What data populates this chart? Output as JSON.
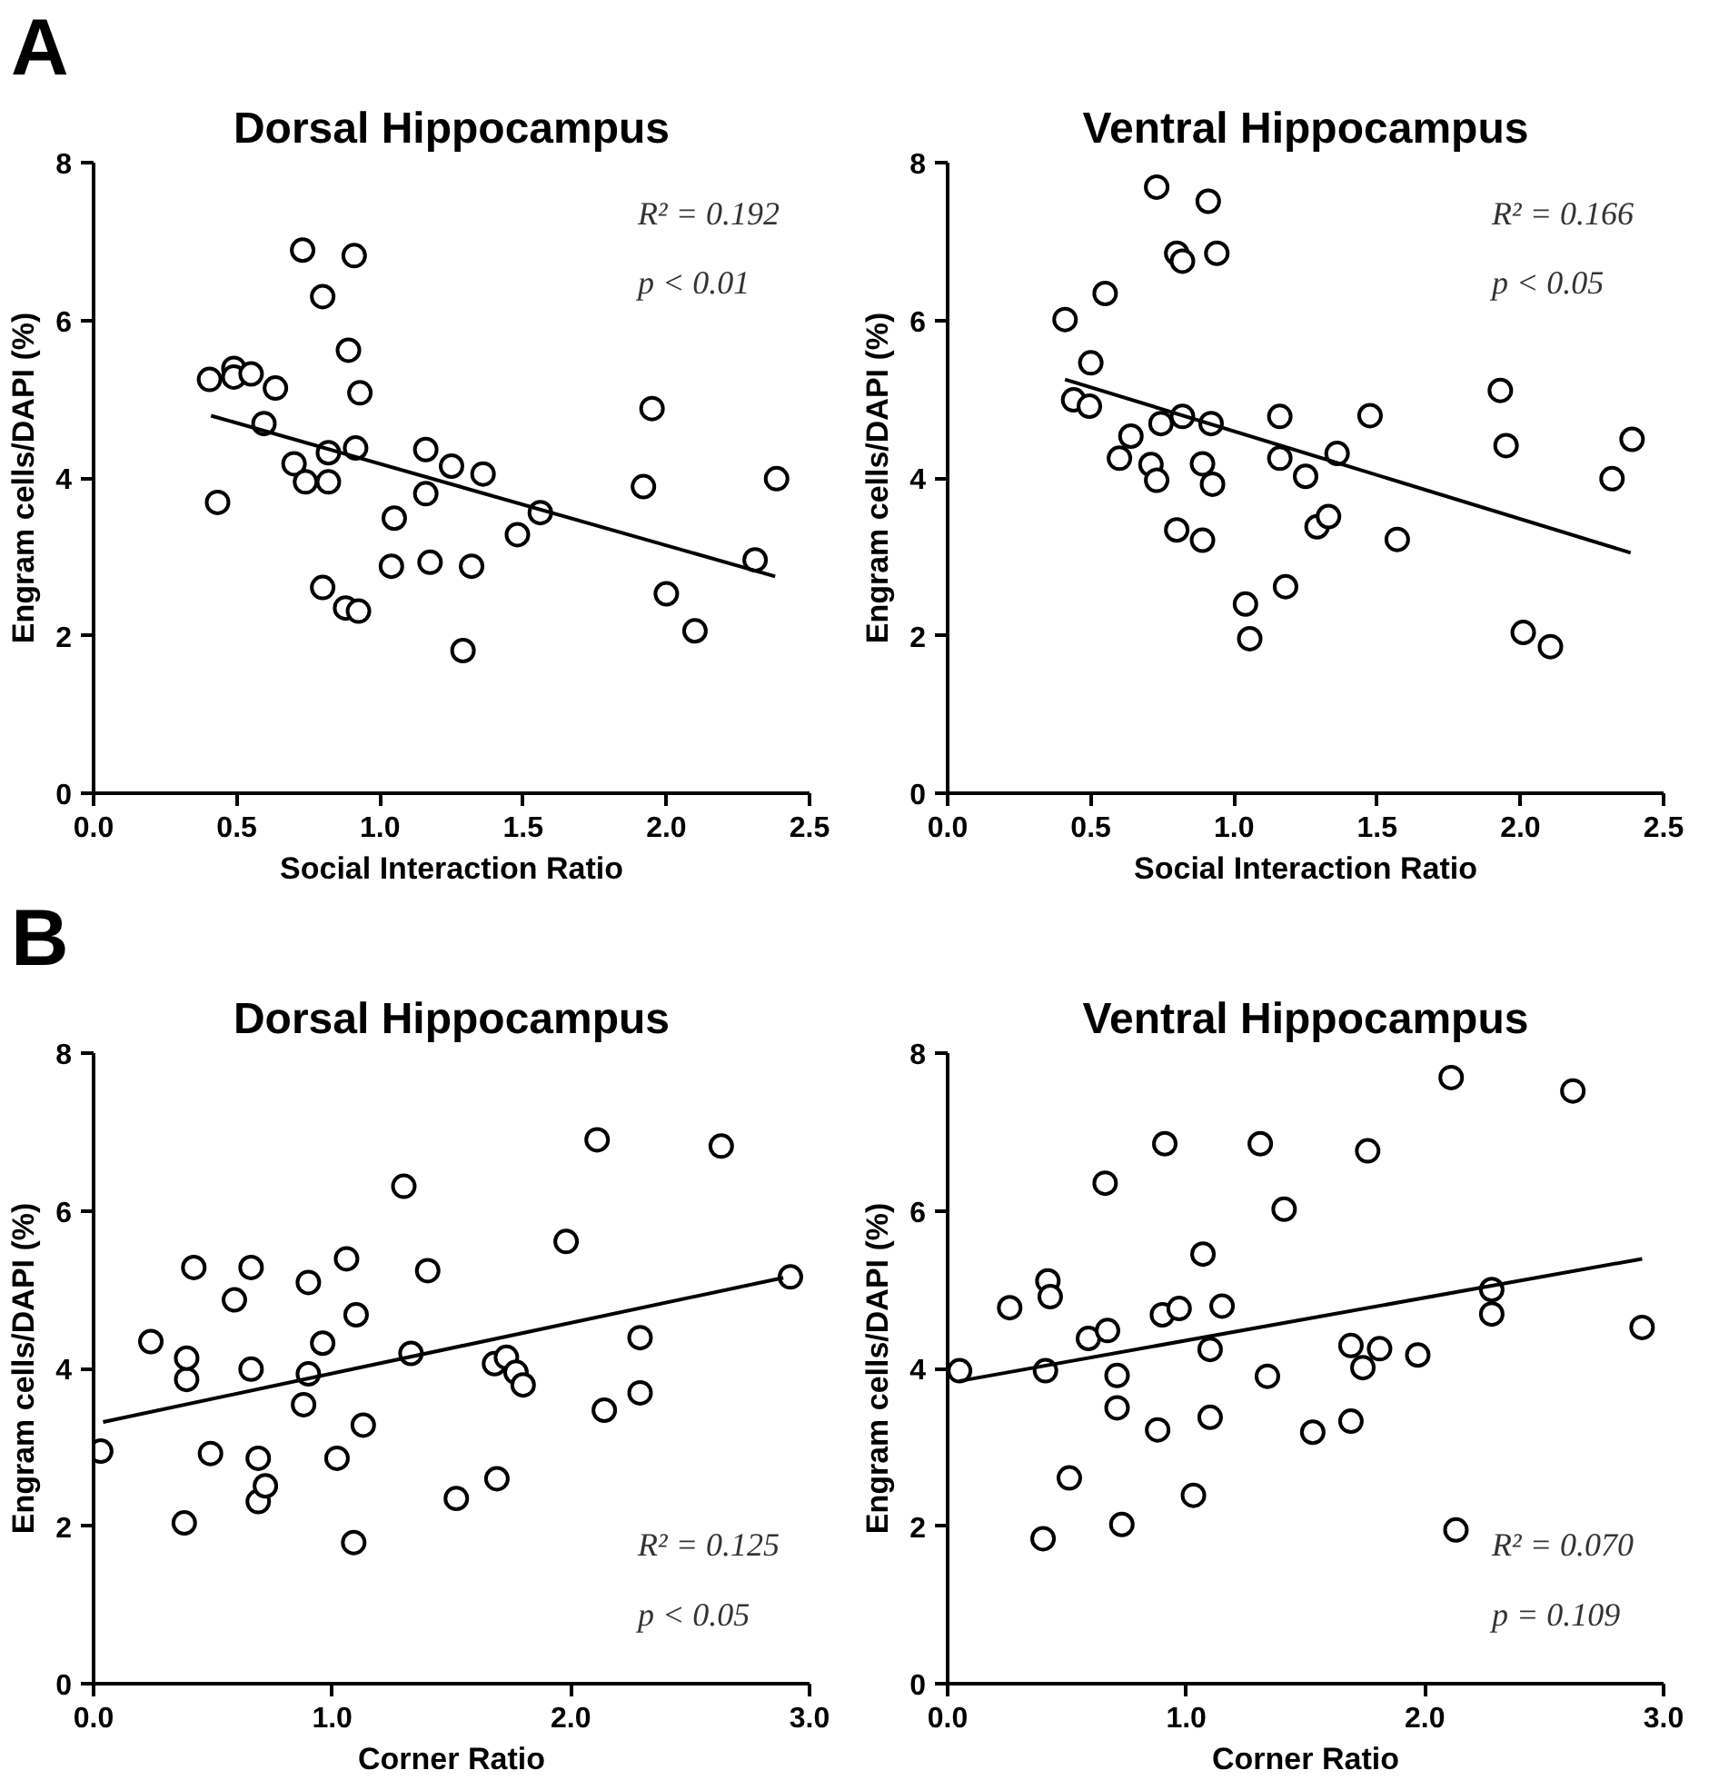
{
  "chart_data": [
    {
      "type": "scatter",
      "title": "Dorsal Hippocampus",
      "xlabel": "Social Interaction Ratio",
      "ylabel": "Engram cells/DAPI (%)",
      "xlim": [
        0,
        2.5
      ],
      "xticks": [
        {
          "value": 0,
          "label": "0.0"
        },
        {
          "value": 0.5,
          "label": "0.5"
        },
        {
          "value": 1,
          "label": "1.0"
        },
        {
          "value": 1.5,
          "label": "1.5"
        },
        {
          "value": 2,
          "label": "2.0"
        },
        {
          "value": 2.5,
          "label": "2.5"
        }
      ],
      "ylim": [
        0,
        8
      ],
      "yticks": [
        0,
        2,
        4,
        6,
        8
      ],
      "grid": false,
      "annotations": [
        "A",
        "R² = 0.192",
        "p < 0.01"
      ],
      "series": [
        {
          "marker": "circle",
          "color": "#ffffff",
          "x": [
            0.405,
            0.433,
            0.49,
            0.49,
            0.55,
            0.635,
            0.595,
            0.73,
            0.7,
            0.74,
            0.82,
            0.82,
            0.8,
            0.8,
            0.89,
            0.91,
            0.93,
            0.915,
            0.88,
            0.925,
            1.05,
            1.04,
            1.16,
            1.16,
            1.175,
            1.25,
            1.29,
            1.32,
            1.36,
            1.48,
            1.56,
            1.95,
            1.92,
            2.0,
            2.1,
            2.31,
            2.385
          ],
          "values": [
            5.25,
            3.69,
            5.39,
            5.28,
            5.32,
            5.14,
            4.69,
            6.89,
            4.18,
            3.95,
            4.32,
            3.95,
            6.3,
            2.61,
            5.62,
            6.82,
            5.08,
            4.38,
            2.35,
            2.31,
            3.49,
            2.88,
            4.36,
            3.8,
            2.93,
            4.15,
            1.81,
            2.88,
            4.05,
            3.28,
            3.56,
            4.88,
            3.89,
            2.53,
            2.06,
            2.96,
            3.99
          ]
        },
        {
          "type": "line",
          "color": "#000000",
          "x": [
            0.41,
            2.38
          ],
          "values": [
            4.79,
            2.75
          ]
        }
      ]
    },
    {
      "type": "scatter",
      "title": "Ventral Hippocampus",
      "xlabel": "Social Interaction Ratio",
      "ylabel": "Engram cells/DAPI (%)",
      "xlim": [
        0,
        2.5
      ],
      "xticks": [
        {
          "value": 0,
          "label": "0.0"
        },
        {
          "value": 0.5,
          "label": "0.5"
        },
        {
          "value": 1,
          "label": "1.0"
        },
        {
          "value": 1.5,
          "label": "1.5"
        },
        {
          "value": 2,
          "label": "2.0"
        },
        {
          "value": 2.5,
          "label": "2.5"
        }
      ],
      "ylim": [
        0,
        8
      ],
      "yticks": [
        0,
        2,
        4,
        6,
        8
      ],
      "grid": false,
      "annotations": [
        "R² = 0.166",
        "p < 0.05"
      ],
      "series": [
        {
          "marker": "circle",
          "color": "#ffffff",
          "x": [
            0.41,
            0.44,
            0.5,
            0.495,
            0.55,
            0.6,
            0.64,
            0.71,
            0.73,
            0.73,
            0.745,
            0.8,
            0.82,
            0.82,
            0.8,
            0.89,
            0.89,
            0.91,
            0.94,
            0.92,
            0.925,
            1.04,
            1.055,
            1.16,
            1.16,
            1.18,
            1.25,
            1.29,
            1.33,
            1.36,
            1.475,
            1.57,
            1.93,
            1.95,
            2.01,
            2.105,
            2.32,
            2.39
          ],
          "values": [
            6.01,
            4.99,
            5.46,
            4.91,
            6.34,
            4.25,
            4.53,
            4.17,
            3.97,
            7.69,
            4.69,
            6.85,
            6.75,
            4.78,
            3.34,
            3.21,
            4.18,
            7.51,
            6.85,
            4.69,
            3.92,
            2.4,
            1.96,
            4.78,
            4.25,
            2.62,
            4.02,
            3.38,
            3.51,
            4.31,
            4.79,
            3.22,
            5.11,
            4.41,
            2.04,
            1.86,
            3.99,
            4.49
          ]
        },
        {
          "type": "line",
          "color": "#000000",
          "x": [
            0.41,
            2.385
          ],
          "values": [
            5.25,
            3.05
          ]
        }
      ]
    },
    {
      "type": "scatter",
      "title": "Dorsal Hippocampus",
      "xlabel": "Corner Ratio",
      "ylabel": "Engram cells/DAPI (%)",
      "xlim": [
        0,
        3
      ],
      "xticks": [
        {
          "value": 0,
          "label": "0.0"
        },
        {
          "value": 1,
          "label": "1.0"
        },
        {
          "value": 2,
          "label": "2.0"
        },
        {
          "value": 3,
          "label": "3.0"
        }
      ],
      "ylim": [
        0,
        8
      ],
      "yticks": [
        0,
        2,
        4,
        6,
        8
      ],
      "grid": false,
      "annotations": [
        "B",
        "R² = 0.125",
        "p < 0.05"
      ],
      "series": [
        {
          "marker": "circle",
          "color": "#ffffff",
          "x": [
            0.03,
            0.24,
            0.38,
            0.39,
            0.39,
            0.42,
            0.49,
            0.59,
            0.66,
            0.66,
            0.69,
            0.69,
            0.72,
            0.88,
            0.9,
            0.9,
            0.96,
            1.02,
            1.06,
            1.09,
            1.1,
            1.13,
            1.3,
            1.33,
            1.4,
            1.52,
            1.68,
            1.69,
            1.73,
            1.77,
            1.8,
            1.98,
            2.11,
            2.14,
            2.29,
            2.29,
            2.63,
            2.92
          ],
          "values": [
            2.95,
            4.34,
            2.04,
            3.86,
            4.13,
            5.28,
            2.92,
            4.87,
            5.28,
            3.99,
            2.86,
            2.31,
            2.51,
            3.54,
            3.93,
            5.09,
            4.32,
            2.86,
            5.39,
            1.79,
            4.68,
            3.28,
            6.31,
            4.19,
            5.24,
            2.35,
            4.06,
            2.6,
            4.14,
            3.95,
            3.79,
            5.61,
            6.9,
            3.47,
            4.39,
            3.69,
            6.82,
            5.16
          ]
        },
        {
          "type": "line",
          "color": "#000000",
          "x": [
            0.04,
            2.89
          ],
          "values": [
            3.32,
            5.15
          ]
        }
      ]
    },
    {
      "type": "scatter",
      "title": "Ventral Hippocampus",
      "xlabel": "Corner Ratio",
      "ylabel": "Engram cells/DAPI (%)",
      "xlim": [
        0,
        3
      ],
      "xticks": [
        {
          "value": 0,
          "label": "0.0"
        },
        {
          "value": 1,
          "label": "1.0"
        },
        {
          "value": 2,
          "label": "2.0"
        },
        {
          "value": 3,
          "label": "3.0"
        }
      ],
      "ylim": [
        0,
        8
      ],
      "yticks": [
        0,
        2,
        4,
        6,
        8
      ],
      "grid": false,
      "annotations": [
        "R² = 0.070",
        "p = 0.109"
      ],
      "series": [
        {
          "marker": "circle",
          "color": "#ffffff",
          "x": [
            0.05,
            0.26,
            0.4,
            0.41,
            0.42,
            0.43,
            0.51,
            0.59,
            0.67,
            0.66,
            0.71,
            0.71,
            0.73,
            0.88,
            0.9,
            0.91,
            0.97,
            1.03,
            1.07,
            1.1,
            1.1,
            1.15,
            1.31,
            1.34,
            1.41,
            1.53,
            1.69,
            1.69,
            1.74,
            1.81,
            1.76,
            1.97,
            2.11,
            2.13,
            2.28,
            2.28,
            2.62,
            2.91
          ],
          "values": [
            3.97,
            4.77,
            1.84,
            3.97,
            5.11,
            4.91,
            2.61,
            4.38,
            4.48,
            6.35,
            3.91,
            3.5,
            2.02,
            3.22,
            4.68,
            6.85,
            4.76,
            2.39,
            5.45,
            3.38,
            4.24,
            4.79,
            6.85,
            3.9,
            6.02,
            3.19,
            3.33,
            4.29,
            4.01,
            4.25,
            6.76,
            4.17,
            7.69,
            1.95,
            5.0,
            4.69,
            7.52,
            4.52
          ]
        },
        {
          "type": "line",
          "color": "#000000",
          "x": [
            0.05,
            2.91
          ],
          "values": [
            3.84,
            5.39
          ]
        }
      ]
    }
  ]
}
